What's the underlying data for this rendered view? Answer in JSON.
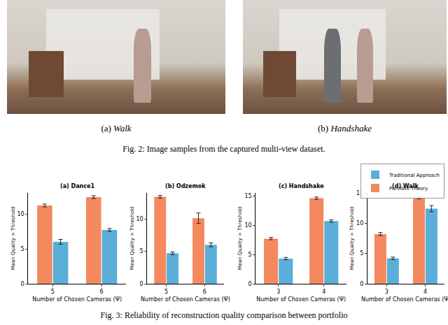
{
  "figure2": {
    "panels": [
      {
        "label": "(a)",
        "title": "Walk"
      },
      {
        "label": "(b)",
        "title": "Handshake"
      }
    ],
    "caption": {
      "label": "Fig. 2:",
      "text": "Image samples from the captured multi-view dataset."
    }
  },
  "chart_data": [
    {
      "type": "bar",
      "title": "(a) Dance1",
      "categories": [
        "5",
        "6"
      ],
      "xlabel": "Number of Chosen Cameras (Ψ)",
      "ylabel": "Mean Quality > Threshold",
      "ylim": [
        0,
        13
      ],
      "yticks": [
        0,
        5,
        10
      ],
      "series": [
        {
          "name": "Portfolio Theory",
          "color": "#f4895f",
          "values": [
            11.2,
            12.4
          ],
          "errors": [
            0.2,
            0.2
          ]
        },
        {
          "name": "Traditional Approach",
          "color": "#5aaed8",
          "values": [
            6.0,
            7.7
          ],
          "errors": [
            0.35,
            0.2
          ]
        }
      ]
    },
    {
      "type": "bar",
      "title": "(b) Odzemok",
      "categories": [
        "5",
        "6"
      ],
      "xlabel": "Number of Chosen Cameras (Ψ)",
      "ylabel": "Mean Quality > Threshold",
      "ylim": [
        0,
        14
      ],
      "yticks": [
        0,
        5,
        10
      ],
      "series": [
        {
          "name": "Portfolio Theory",
          "color": "#f4895f",
          "values": [
            13.4,
            10.1
          ],
          "errors": [
            0.2,
            0.8
          ]
        },
        {
          "name": "Traditional Approach",
          "color": "#5aaed8",
          "values": [
            4.7,
            6.0
          ],
          "errors": [
            0.2,
            0.3
          ]
        }
      ]
    },
    {
      "type": "bar",
      "title": "(c) Handshake",
      "categories": [
        "3",
        "4"
      ],
      "xlabel": "Number of Chosen Cameras (Ψ)",
      "ylabel": "Mean Quality > Threshold",
      "ylim": [
        0,
        15.5
      ],
      "yticks": [
        0,
        5,
        10,
        15
      ],
      "series": [
        {
          "name": "Portfolio Theory",
          "color": "#f4895f",
          "values": [
            7.7,
            14.6
          ],
          "errors": [
            0.2,
            0.2
          ]
        },
        {
          "name": "Traditional Approach",
          "color": "#5aaed8",
          "values": [
            4.3,
            10.7
          ],
          "errors": [
            0.2,
            0.2
          ]
        }
      ]
    },
    {
      "type": "bar",
      "title": "(d) Walk",
      "categories": [
        "3",
        "4"
      ],
      "xlabel": "Number of Chosen Cameras (Ψ)",
      "ylabel": "Mean Quality > Threshold",
      "ylim": [
        0,
        15
      ],
      "yticks": [
        0,
        5,
        10,
        15
      ],
      "legend": "upper right",
      "series": [
        {
          "name": "Portfolio Theory",
          "color": "#f4895f",
          "values": [
            8.2,
            14.2
          ],
          "errors": [
            0.25,
            0.2
          ]
        },
        {
          "name": "Traditional Approach",
          "color": "#5aaed8",
          "values": [
            4.2,
            12.4
          ],
          "errors": [
            0.2,
            0.5
          ]
        }
      ]
    }
  ],
  "figure3": {
    "caption": {
      "label": "Fig. 3:",
      "text": "Reliability of reconstruction quality comparison between portfolio"
    }
  }
}
